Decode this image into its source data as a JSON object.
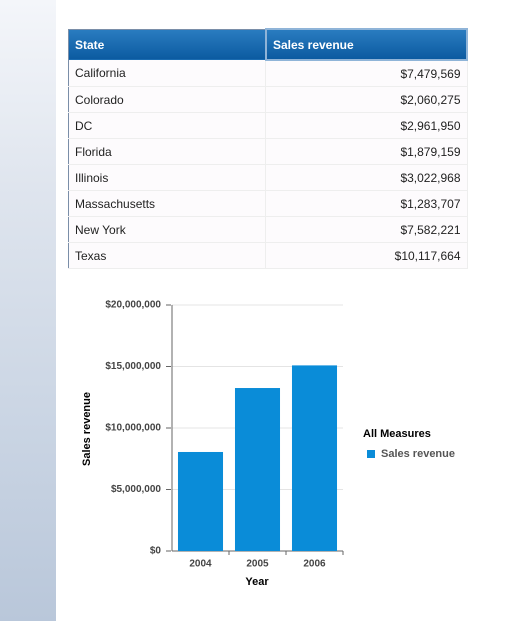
{
  "table": {
    "headers": [
      "State",
      "Sales revenue"
    ],
    "rows": [
      [
        "California",
        "$7,479,569"
      ],
      [
        "Colorado",
        "$2,060,275"
      ],
      [
        "DC",
        "$2,961,950"
      ],
      [
        "Florida",
        "$1,879,159"
      ],
      [
        "Illinois",
        "$3,022,968"
      ],
      [
        "Massachusetts",
        "$1,283,707"
      ],
      [
        "New York",
        "$7,582,221"
      ],
      [
        "Texas",
        "$10,117,664"
      ]
    ]
  },
  "chart_data": {
    "type": "bar",
    "x_label": "Year",
    "y_label": "Sales revenue",
    "categories": [
      "2004",
      "2005",
      "2006"
    ],
    "series": [
      {
        "name": "Sales revenue",
        "color": "#0a8cd8",
        "values": [
          8050000,
          13250000,
          15090000
        ]
      }
    ],
    "ylim": [
      0,
      20000000
    ],
    "yticks": [
      {
        "value": 0,
        "label": "$0"
      },
      {
        "value": 5000000,
        "label": "$5,000,000"
      },
      {
        "value": 10000000,
        "label": "$10,000,000"
      },
      {
        "value": 15000000,
        "label": "$15,000,000"
      },
      {
        "value": 20000000,
        "label": "$20,000,000"
      }
    ],
    "grid": true,
    "legend_title": "All Measures",
    "legend": "right"
  }
}
